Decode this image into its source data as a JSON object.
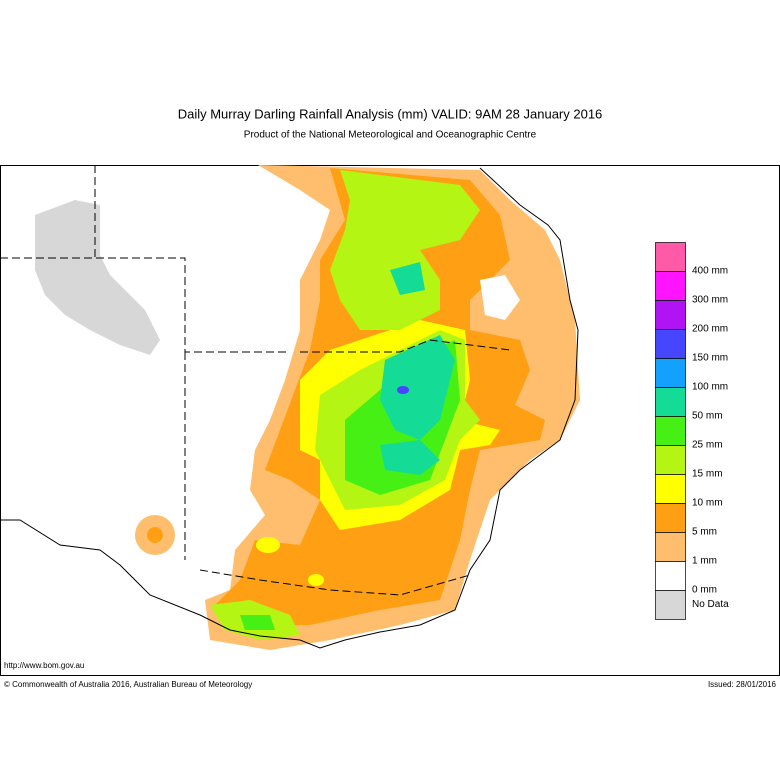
{
  "header": {
    "title": "Daily Murray Darling Rainfall Analysis (mm)  VALID: 9AM 28 January 2016",
    "subtitle": "Product of the National Meteorological and Oceanographic Centre"
  },
  "legend": [
    {
      "label": "400 mm",
      "color": "#ff5aa8"
    },
    {
      "label": "300 mm",
      "color": "#ff14ff"
    },
    {
      "label": "200 mm",
      "color": "#b014f5"
    },
    {
      "label": "150 mm",
      "color": "#4646ff"
    },
    {
      "label": "100 mm",
      "color": "#14a0ff"
    },
    {
      "label": "50 mm",
      "color": "#14dc96"
    },
    {
      "label": "25 mm",
      "color": "#46f014"
    },
    {
      "label": "15 mm",
      "color": "#b4f514"
    },
    {
      "label": "10 mm",
      "color": "#ffff00"
    },
    {
      "label": "5 mm",
      "color": "#ffa014"
    },
    {
      "label": "1 mm",
      "color": "#ffbe6e"
    },
    {
      "label": "0 mm",
      "color": "#ffffff"
    },
    {
      "label": "No Data",
      "color": "#d7d7d7"
    }
  ],
  "footer": {
    "url": "http://www.bom.gov.au",
    "copyright": "© Commonwealth of Australia 2016, Australian Bureau of Meteorology",
    "issued": "Issued: 28/01/2016"
  }
}
